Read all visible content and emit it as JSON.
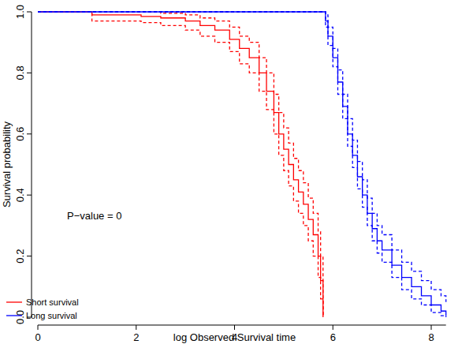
{
  "chart_data": {
    "type": "survival",
    "x_label": "log Observed Survival time",
    "y_label": "Survival probability",
    "annotation": "P−value = 0",
    "xlim": [
      0,
      8.3
    ],
    "ylim": [
      0,
      1
    ],
    "xticks": [
      0,
      2,
      4,
      6,
      8
    ],
    "yticks": [
      {
        "value": 0,
        "label": "0.0"
      },
      {
        "value": 0.2,
        "label": "0.2"
      },
      {
        "value": 0.4,
        "label": "0.4"
      },
      {
        "value": 0.6,
        "label": "0.6"
      },
      {
        "value": 0.8,
        "label": "0.8"
      },
      {
        "value": 1,
        "label": "1.0"
      }
    ],
    "grid": false,
    "legend": "bottomleft",
    "series": [
      {
        "name": "Short survival",
        "color": "#ff0000",
        "x": [
          0,
          1.1,
          2.1,
          2.5,
          3.0,
          3.3,
          3.6,
          3.9,
          4.1,
          4.3,
          4.5,
          4.65,
          4.8,
          4.9,
          5.0,
          5.1,
          5.2,
          5.3,
          5.4,
          5.5,
          5.6,
          5.7,
          5.75,
          5.8
        ],
        "values": [
          1,
          0.99,
          0.985,
          0.98,
          0.97,
          0.955,
          0.94,
          0.91,
          0.88,
          0.85,
          0.8,
          0.74,
          0.67,
          0.6,
          0.55,
          0.5,
          0.45,
          0.41,
          0.37,
          0.32,
          0.27,
          0.2,
          0.12,
          0
        ],
        "lower": [
          1,
          0.97,
          0.965,
          0.955,
          0.94,
          0.92,
          0.9,
          0.87,
          0.83,
          0.8,
          0.74,
          0.68,
          0.6,
          0.53,
          0.48,
          0.43,
          0.38,
          0.34,
          0.3,
          0.25,
          0.2,
          0.13,
          0.06,
          0
        ],
        "upper": [
          1,
          1,
          1,
          0.995,
          0.99,
          0.98,
          0.97,
          0.95,
          0.92,
          0.9,
          0.85,
          0.8,
          0.73,
          0.67,
          0.62,
          0.57,
          0.52,
          0.48,
          0.44,
          0.39,
          0.34,
          0.28,
          0.2,
          0
        ]
      },
      {
        "name": "Long survival",
        "color": "#0000ff",
        "x": [
          0,
          5.85,
          5.9,
          6.0,
          6.1,
          6.2,
          6.3,
          6.4,
          6.5,
          6.6,
          6.7,
          6.8,
          6.9,
          7.0,
          7.2,
          7.4,
          7.6,
          7.8,
          8.0,
          8.2,
          8.3
        ],
        "values": [
          1,
          0.97,
          0.92,
          0.85,
          0.77,
          0.69,
          0.6,
          0.53,
          0.46,
          0.4,
          0.34,
          0.29,
          0.25,
          0.22,
          0.17,
          0.13,
          0.1,
          0.07,
          0.04,
          0.02,
          0.005
        ],
        "lower": [
          1,
          0.95,
          0.89,
          0.82,
          0.73,
          0.65,
          0.56,
          0.49,
          0.42,
          0.36,
          0.3,
          0.25,
          0.21,
          0.18,
          0.13,
          0.09,
          0.06,
          0.04,
          0.015,
          0.005,
          0
        ],
        "upper": [
          1,
          0.99,
          0.95,
          0.88,
          0.81,
          0.73,
          0.65,
          0.58,
          0.51,
          0.45,
          0.39,
          0.34,
          0.3,
          0.27,
          0.22,
          0.18,
          0.15,
          0.12,
          0.09,
          0.07,
          0.05
        ]
      }
    ]
  }
}
